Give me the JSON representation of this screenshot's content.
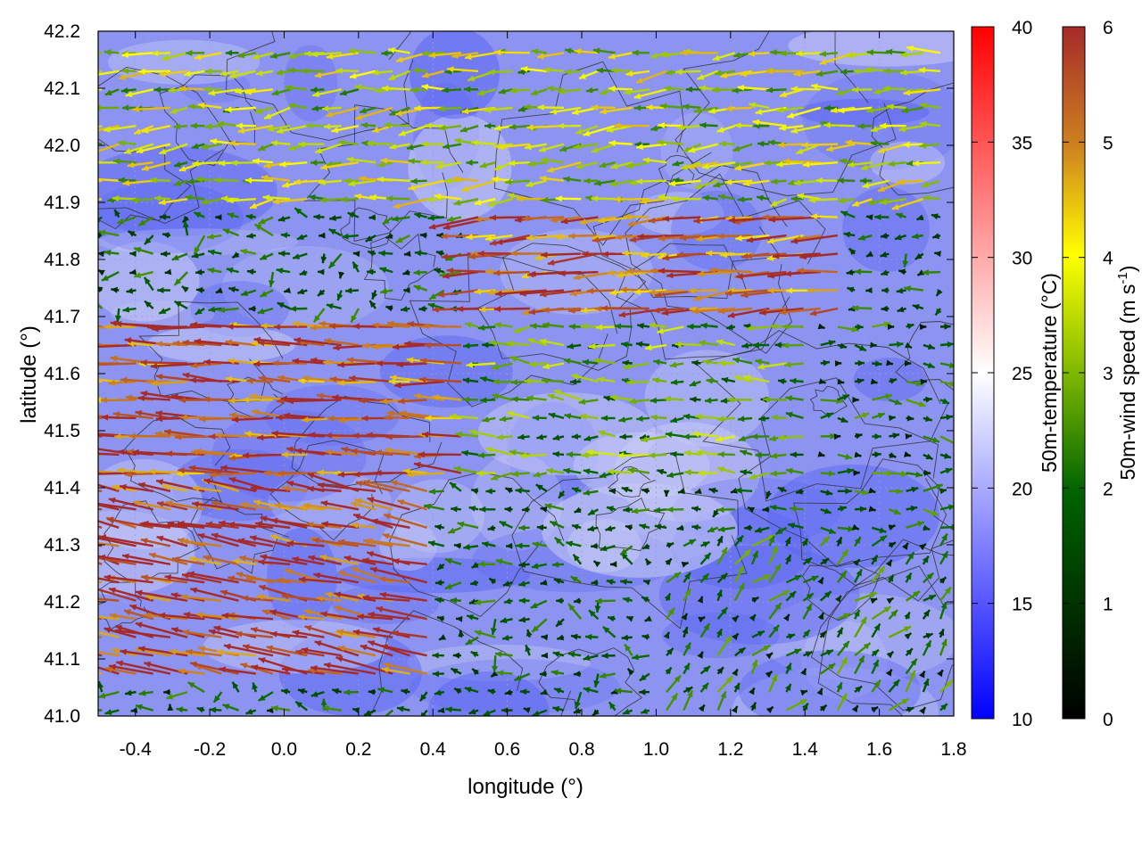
{
  "chart_data": {
    "type": "vector-field",
    "xlabel": "longitude (°)",
    "ylabel": "latitude (°)",
    "xlim": [
      -0.5,
      1.8
    ],
    "ylim": [
      41.0,
      42.2
    ],
    "xticks": [
      -0.4,
      -0.2,
      0.0,
      0.2,
      0.4,
      0.6,
      0.8,
      1.0,
      1.2,
      1.4,
      1.6,
      1.8
    ],
    "xtick_labels": [
      "-0.4",
      "-0.2",
      "0.0",
      "0.2",
      "0.4",
      "0.6",
      "0.8",
      "1.0",
      "1.2",
      "1.4",
      "1.6",
      "1.8"
    ],
    "yticks": [
      41.0,
      41.1,
      41.2,
      41.3,
      41.4,
      41.5,
      41.6,
      41.7,
      41.8,
      41.9,
      42.0,
      42.1,
      42.2
    ],
    "ytick_labels": [
      "41.0",
      "41.1",
      "41.2",
      "41.3",
      "41.4",
      "41.5",
      "41.6",
      "41.7",
      "41.8",
      "41.9",
      "42.0",
      "42.1",
      "42.2"
    ],
    "grid": true,
    "background_field": "50m-temperature (°C)",
    "contours": "topography (black lines)",
    "colorbars": [
      {
        "label": "50m-temperature (°C)",
        "range": [
          10,
          40
        ],
        "ticks": [
          10,
          15,
          20,
          25,
          30,
          35,
          40
        ],
        "tick_labels": [
          "10",
          "15",
          "20",
          "25",
          "30",
          "35",
          "40"
        ],
        "colors": [
          "#0000ff",
          "#ffffff",
          "#ff0000"
        ]
      },
      {
        "label_main": "50m-wind speed (m s",
        "label_sup": "-1",
        "label_end": ")",
        "range": [
          0,
          6
        ],
        "ticks": [
          0,
          1,
          2,
          3,
          4,
          5,
          6
        ],
        "tick_labels": [
          "0",
          "1",
          "2",
          "3",
          "4",
          "5",
          "6"
        ],
        "colors": [
          "#000000",
          "#006400",
          "#7fb800",
          "#ffff00",
          "#cd8020",
          "#a52a2a"
        ]
      }
    ],
    "wind_regions": [
      {
        "x": [
          -0.5,
          0.4
        ],
        "y": [
          41.05,
          41.4
        ],
        "u": -3.2,
        "v": 0.6,
        "speed": 5.8
      },
      {
        "x": [
          -0.5,
          0.5
        ],
        "y": [
          41.4,
          41.7
        ],
        "u": -2.8,
        "v": 0.1,
        "speed": 5.5
      },
      {
        "x": [
          0.5,
          1.5
        ],
        "y": [
          41.7,
          41.9
        ],
        "u": -2.6,
        "v": -0.2,
        "speed": 5.4
      },
      {
        "x": [
          -0.5,
          1.8
        ],
        "y": [
          41.9,
          42.2
        ],
        "u": -1.2,
        "v": -0.1,
        "speed": 3.4
      },
      {
        "x": [
          0.5,
          1.4
        ],
        "y": [
          41.4,
          41.7
        ],
        "u": -1.1,
        "v": 0.0,
        "speed": 2.6
      },
      {
        "x": [
          1.4,
          1.8
        ],
        "y": [
          41.3,
          41.7
        ],
        "u": 0.8,
        "v": 0.0,
        "speed": 1.6
      },
      {
        "x": [
          1.0,
          1.8
        ],
        "y": [
          41.0,
          41.3
        ],
        "u": 0.3,
        "v": 0.4,
        "speed": 1.8
      }
    ]
  }
}
